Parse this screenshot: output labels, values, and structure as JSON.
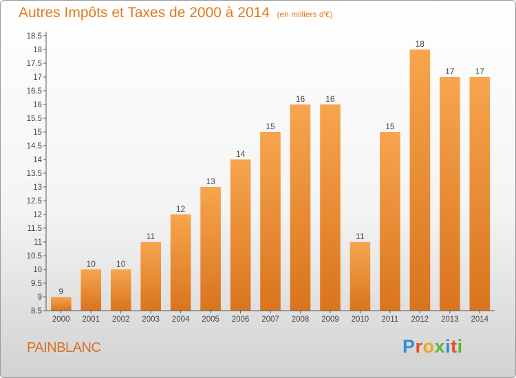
{
  "chart_data": {
    "type": "bar",
    "title": "Autres Impôts et Taxes de 2000 à 2014",
    "subtitle": "(en milliers d'€)",
    "categories": [
      "2000",
      "2001",
      "2002",
      "2003",
      "2004",
      "2005",
      "2006",
      "2007",
      "2008",
      "2009",
      "2010",
      "2011",
      "2012",
      "2013",
      "2014"
    ],
    "values": [
      9,
      10,
      10,
      11,
      12,
      13,
      14,
      15,
      16,
      16,
      11,
      15,
      18,
      17,
      17
    ],
    "data_labels": [
      "9",
      "10",
      "10",
      "11",
      "12",
      "13",
      "14",
      "15",
      "16",
      "16",
      "11",
      "15",
      "18",
      "17",
      "17"
    ],
    "ylim": [
      8.5,
      18.5
    ],
    "yticks": [
      "8.5",
      "9",
      "9.5",
      "10",
      "10.5",
      "11",
      "11.5",
      "12",
      "12.5",
      "13",
      "13.5",
      "14",
      "14.5",
      "15",
      "15.5",
      "16",
      "16.5",
      "17",
      "17.5",
      "18",
      "18.5"
    ],
    "grid": false,
    "legend": "none",
    "colors": {
      "bar_light": "#f7a54e",
      "bar_dark": "#d9741e",
      "axis": "#555555",
      "text": "#444444",
      "title": "#e07a1e"
    }
  },
  "footer": {
    "place": "PAINBLANC"
  },
  "brand": {
    "letters": [
      "P",
      "r",
      "o",
      "x",
      "i",
      "t",
      "i"
    ],
    "colors": [
      "#2f8fd6",
      "#e94b2b",
      "#f2a51c",
      "#5ab432",
      "#2f8fd6",
      "#e94b2b",
      "#5ab432"
    ]
  }
}
